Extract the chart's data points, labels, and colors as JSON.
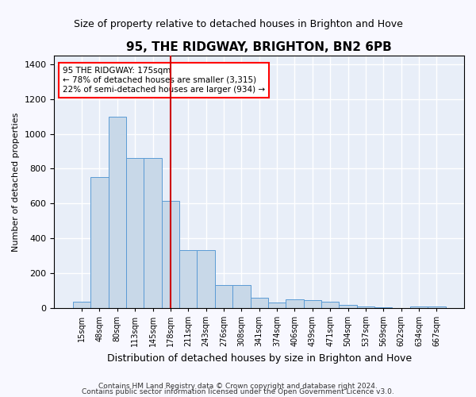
{
  "title": "95, THE RIDGWAY, BRIGHTON, BN2 6PB",
  "subtitle": "Size of property relative to detached houses in Brighton and Hove",
  "xlabel": "Distribution of detached houses by size in Brighton and Hove",
  "ylabel": "Number of detached properties",
  "footnote1": "Contains HM Land Registry data © Crown copyright and database right 2024.",
  "footnote2": "Contains public sector information licensed under the Open Government Licence v3.0.",
  "annotation_line1": "95 THE RIDGWAY: 175sqm",
  "annotation_line2": "← 78% of detached houses are smaller (3,315)",
  "annotation_line3": "22% of semi-detached houses are larger (934) →",
  "bar_color": "#c8d8e8",
  "bar_edge_color": "#5b9bd5",
  "vline_color": "#cc0000",
  "background_color": "#e8eef8",
  "grid_color": "#ffffff",
  "categories": [
    "15sqm",
    "48sqm",
    "80sqm",
    "113sqm",
    "145sqm",
    "178sqm",
    "211sqm",
    "243sqm",
    "276sqm",
    "308sqm",
    "341sqm",
    "374sqm",
    "406sqm",
    "439sqm",
    "471sqm",
    "504sqm",
    "537sqm",
    "569sqm",
    "602sqm",
    "634sqm",
    "667sqm"
  ],
  "values": [
    35,
    750,
    1100,
    860,
    860,
    615,
    330,
    330,
    130,
    130,
    60,
    30,
    50,
    45,
    35,
    18,
    10,
    5,
    0,
    10,
    10
  ],
  "vline_index": 5,
  "ylim": [
    0,
    1450
  ],
  "yticks": [
    0,
    200,
    400,
    600,
    800,
    1000,
    1200,
    1400
  ]
}
